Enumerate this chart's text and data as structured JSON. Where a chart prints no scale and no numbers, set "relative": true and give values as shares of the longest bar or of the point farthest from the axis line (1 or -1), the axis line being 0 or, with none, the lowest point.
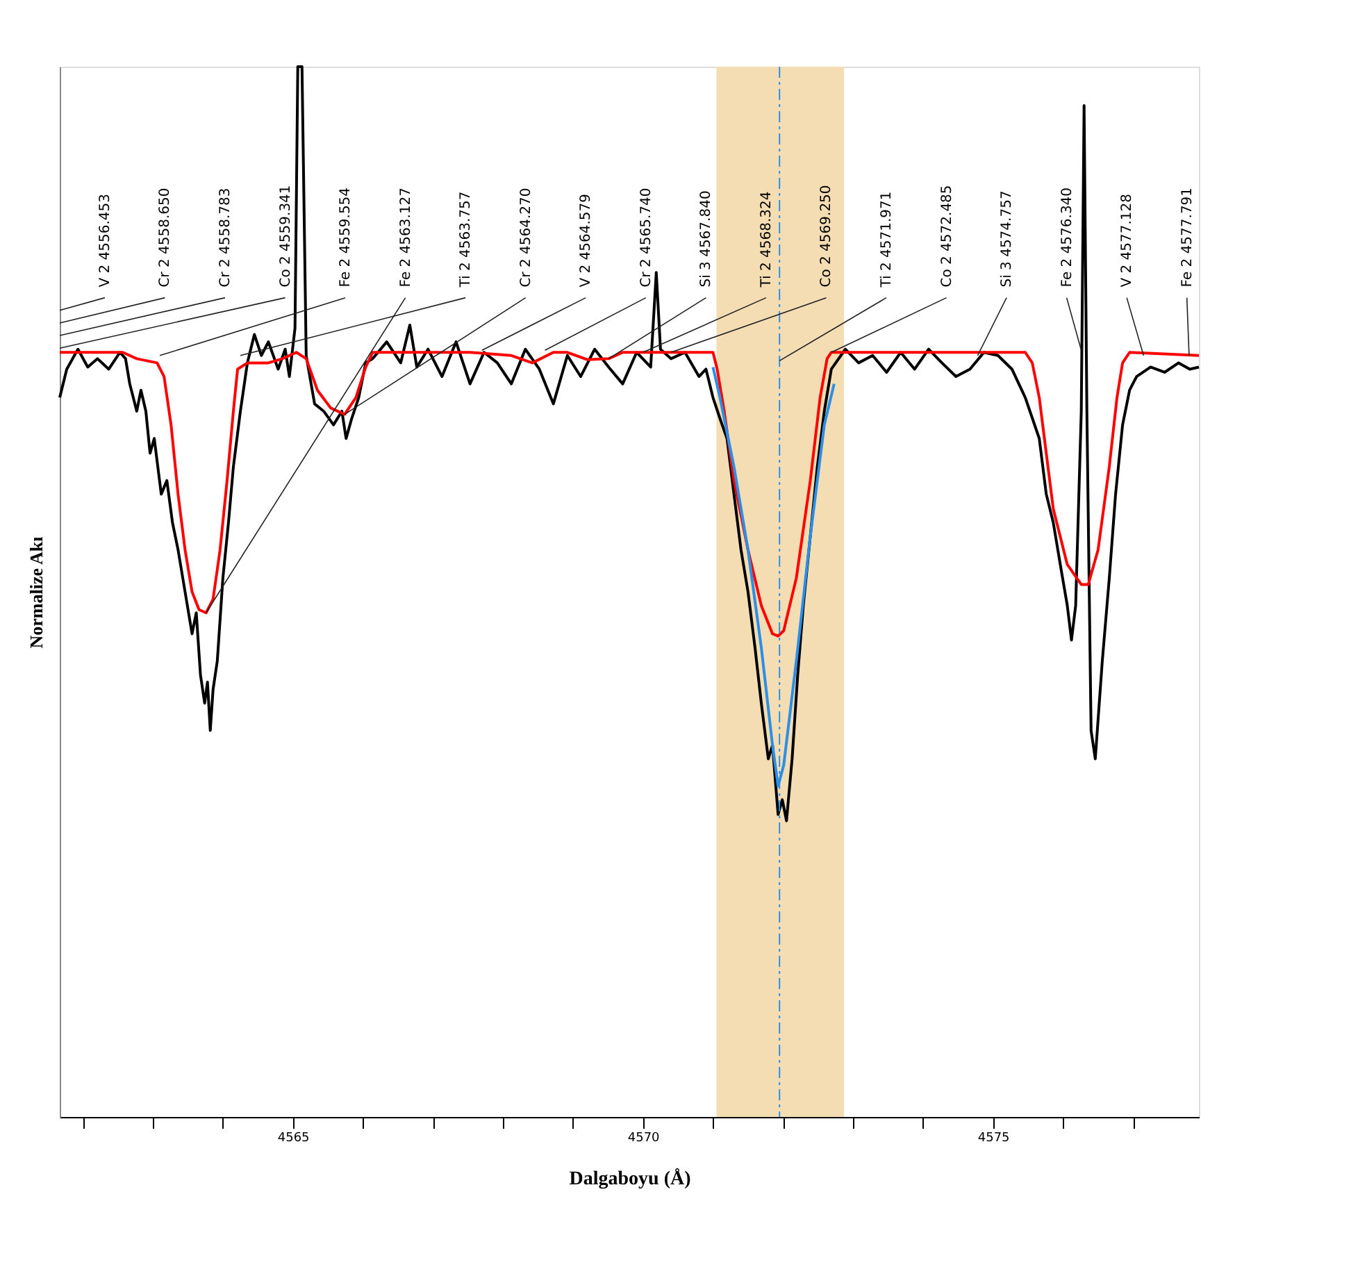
{
  "chart_data": {
    "type": "line",
    "relative": true,
    "xlabel": "Dalgaboyu (Å)",
    "ylabel": "Normalize Akı",
    "xlim": [
      4561.67,
      4577.94
    ],
    "xticks": [
      {
        "value": 4562,
        "label": null
      },
      {
        "value": 4563,
        "label": null
      },
      {
        "value": 4564,
        "label": null
      },
      4565,
      {
        "value": 4566,
        "label": null
      },
      {
        "value": 4567,
        "label": null
      },
      {
        "value": 4568,
        "label": null
      },
      {
        "value": 4569,
        "label": null
      },
      4570,
      {
        "value": 4571,
        "label": null
      },
      {
        "value": 4572,
        "label": null
      },
      {
        "value": 4573,
        "label": null
      },
      {
        "value": 4574,
        "label": null
      },
      4575,
      {
        "value": 4576,
        "label": null
      },
      {
        "value": 4577,
        "label": null
      }
    ],
    "grid": false,
    "bands": [
      {
        "axis": "x",
        "from": 4571.05,
        "to": 4572.87,
        "color": "#f4ddb2"
      }
    ],
    "ref_lines": [
      {
        "axis": "x",
        "value": 4571.95,
        "color": "#2b8fe8",
        "line_style": "dashed"
      }
    ],
    "series": [
      {
        "color": "#000000",
        "x": [
          4561.67,
          4561.77,
          4561.93,
          4562.07,
          4562.21,
          4562.37,
          4562.53,
          4562.61,
          4562.67,
          4562.77,
          4562.83,
          4562.9,
          4562.96,
          4563.02,
          4563.12,
          4563.2,
          4563.28,
          4563.36,
          4563.46,
          4563.56,
          4563.62,
          4563.68,
          4563.74,
          4563.78,
          4563.82,
          4563.86,
          4563.92,
          4564.0,
          4564.08,
          4564.15,
          4564.25,
          4564.35,
          4564.45,
          4564.55,
          4564.65,
          4564.79,
          4564.89,
          4564.95,
          4565.03,
          4565.07,
          4565.13,
          4565.19,
          4565.31,
          4565.44,
          4565.58,
          4565.7,
          4565.76,
          4565.84,
          4565.94,
          4566.04,
          4566.14,
          4566.34,
          4566.54,
          4566.67,
          4566.77,
          4566.93,
          4567.13,
          4567.33,
          4567.53,
          4567.73,
          4567.92,
          4568.12,
          4568.32,
          4568.52,
          4568.72,
          4568.92,
          4569.11,
          4569.31,
          4569.51,
          4569.71,
          4569.91,
          4570.11,
          4570.19,
          4570.25,
          4570.4,
          4570.6,
          4570.8,
          4570.9,
          4571.0,
          4571.1,
          4571.2,
          4571.3,
          4571.4,
          4571.5,
          4571.6,
          4571.69,
          4571.79,
          4571.85,
          4571.93,
          4571.99,
          4572.05,
          4572.13,
          4572.21,
          4572.29,
          4572.39,
          4572.49,
          4572.59,
          4572.69,
          4572.89,
          4573.08,
          4573.28,
          4573.48,
          4573.68,
          4573.88,
          4574.08,
          4574.27,
          4574.47,
          4574.67,
          4574.87,
          4575.07,
          4575.27,
          4575.46,
          4575.66,
          4575.76,
          4575.86,
          4575.96,
          4576.06,
          4576.12,
          4576.18,
          4576.26,
          4576.3,
          4576.34,
          4576.4,
          4576.46,
          4576.56,
          4576.66,
          4576.75,
          4576.85,
          4576.95,
          4577.05,
          4577.25,
          4577.45,
          4577.65,
          4577.81,
          4577.94
        ],
        "values": [
          0.685,
          0.712,
          0.731,
          0.714,
          0.722,
          0.712,
          0.728,
          0.722,
          0.698,
          0.672,
          0.692,
          0.672,
          0.632,
          0.646,
          0.593,
          0.606,
          0.566,
          0.54,
          0.5,
          0.46,
          0.48,
          0.421,
          0.394,
          0.414,
          0.368,
          0.407,
          0.434,
          0.513,
          0.566,
          0.619,
          0.672,
          0.718,
          0.745,
          0.725,
          0.738,
          0.712,
          0.731,
          0.705,
          0.751,
          1.0,
          1.0,
          0.725,
          0.679,
          0.672,
          0.659,
          0.672,
          0.646,
          0.665,
          0.685,
          0.718,
          0.722,
          0.738,
          0.718,
          0.754,
          0.714,
          0.731,
          0.705,
          0.738,
          0.698,
          0.728,
          0.718,
          0.698,
          0.731,
          0.712,
          0.679,
          0.725,
          0.705,
          0.731,
          0.714,
          0.698,
          0.728,
          0.714,
          0.804,
          0.731,
          0.722,
          0.728,
          0.705,
          0.712,
          0.685,
          0.665,
          0.646,
          0.593,
          0.54,
          0.5,
          0.447,
          0.394,
          0.341,
          0.354,
          0.288,
          0.302,
          0.282,
          0.341,
          0.421,
          0.487,
          0.553,
          0.619,
          0.672,
          0.712,
          0.731,
          0.718,
          0.725,
          0.709,
          0.728,
          0.712,
          0.731,
          0.718,
          0.705,
          0.712,
          0.728,
          0.725,
          0.712,
          0.685,
          0.646,
          0.593,
          0.566,
          0.526,
          0.487,
          0.454,
          0.487,
          0.672,
          0.963,
          0.672,
          0.368,
          0.341,
          0.434,
          0.513,
          0.593,
          0.659,
          0.692,
          0.705,
          0.714,
          0.709,
          0.718,
          0.712,
          0.714
        ]
      },
      {
        "color": "#ff0000",
        "x": [
          4561.67,
          4562.57,
          4562.77,
          4563.06,
          4563.16,
          4563.26,
          4563.36,
          4563.46,
          4563.56,
          4563.66,
          4563.76,
          4563.86,
          4563.96,
          4564.06,
          4564.15,
          4564.21,
          4564.35,
          4564.65,
          4564.85,
          4565.05,
          4565.19,
          4565.35,
          4565.54,
          4565.74,
          4565.9,
          4566.04,
          4566.14,
          4567.53,
          4568.12,
          4568.42,
          4568.72,
          4568.92,
          4569.21,
          4569.51,
          4569.71,
          4571.0,
          4571.06,
          4571.16,
          4571.3,
          4571.5,
          4571.69,
          4571.85,
          4571.93,
          4572.01,
          4572.19,
          4572.39,
          4572.53,
          4572.63,
          4572.69,
          4574.67,
          4575.46,
          4575.56,
          4575.66,
          4575.76,
          4575.86,
          4576.06,
          4576.26,
          4576.36,
          4576.5,
          4576.66,
          4576.77,
          4576.85,
          4576.95,
          4577.94
        ],
        "values": [
          0.728,
          0.728,
          0.722,
          0.718,
          0.705,
          0.659,
          0.593,
          0.54,
          0.5,
          0.483,
          0.48,
          0.493,
          0.54,
          0.606,
          0.672,
          0.712,
          0.718,
          0.718,
          0.722,
          0.728,
          0.722,
          0.692,
          0.675,
          0.669,
          0.685,
          0.714,
          0.728,
          0.728,
          0.725,
          0.718,
          0.728,
          0.728,
          0.721,
          0.722,
          0.728,
          0.728,
          0.712,
          0.672,
          0.606,
          0.54,
          0.487,
          0.46,
          0.458,
          0.463,
          0.513,
          0.606,
          0.685,
          0.722,
          0.728,
          0.728,
          0.728,
          0.718,
          0.685,
          0.632,
          0.579,
          0.526,
          0.507,
          0.507,
          0.54,
          0.619,
          0.685,
          0.718,
          0.728,
          0.725
        ]
      },
      {
        "color": "#2b8fe8",
        "x": [
          4571.0,
          4571.1,
          4571.3,
          4571.5,
          4571.69,
          4571.85,
          4571.93,
          4572.01,
          4572.19,
          4572.39,
          4572.59,
          4572.73
        ],
        "values": [
          0.714,
          0.685,
          0.619,
          0.54,
          0.447,
          0.354,
          0.315,
          0.335,
          0.434,
          0.553,
          0.659,
          0.698
        ]
      }
    ],
    "annotations": [
      "V  2  4556.453",
      "Cr 2  4558.650",
      "Cr 2  4558.783",
      "Co 2  4559.341",
      {
        "text": "Fe 2  4559.554",
        "x": 4563.1,
        "y": 0.725
      },
      {
        "text": "Fe 2  4563.127",
        "x": 4563.76,
        "y": 0.48
      },
      {
        "text": "Ti 2  4563.757",
        "x": 4564.25,
        "y": 0.725
      },
      {
        "text": "Cr 2  4564.270",
        "x": 4565.74,
        "y": 0.669
      },
      {
        "text": "V  2  4564.579",
        "x": 4567.7,
        "y": 0.73
      },
      {
        "text": "Cr 2  4565.740",
        "x": 4568.6,
        "y": 0.73
      },
      {
        "text": "Si 3  4567.840",
        "x": 4569.51,
        "y": 0.722
      },
      {
        "text": "Ti 2  4568.324",
        "x": 4570.0,
        "y": 0.728
      },
      {
        "text": "Co 2  4569.250",
        "x": 4570.4,
        "y": 0.728
      },
      {
        "text": "Ti 2  4571.971",
        "x": 4571.95,
        "y": 0.72
      },
      {
        "text": "Co 2  4572.485",
        "x": 4572.69,
        "y": 0.728
      },
      {
        "text": "Si 3  4574.757",
        "x": 4574.78,
        "y": 0.725
      },
      {
        "text": "Fe 2  4576.340",
        "x": 4576.26,
        "y": 0.73
      },
      {
        "text": "V  2  4577.128",
        "x": 4577.15,
        "y": 0.725
      },
      {
        "text": "Fe 2  4577.791",
        "x": 4577.8,
        "y": 0.725
      }
    ]
  }
}
